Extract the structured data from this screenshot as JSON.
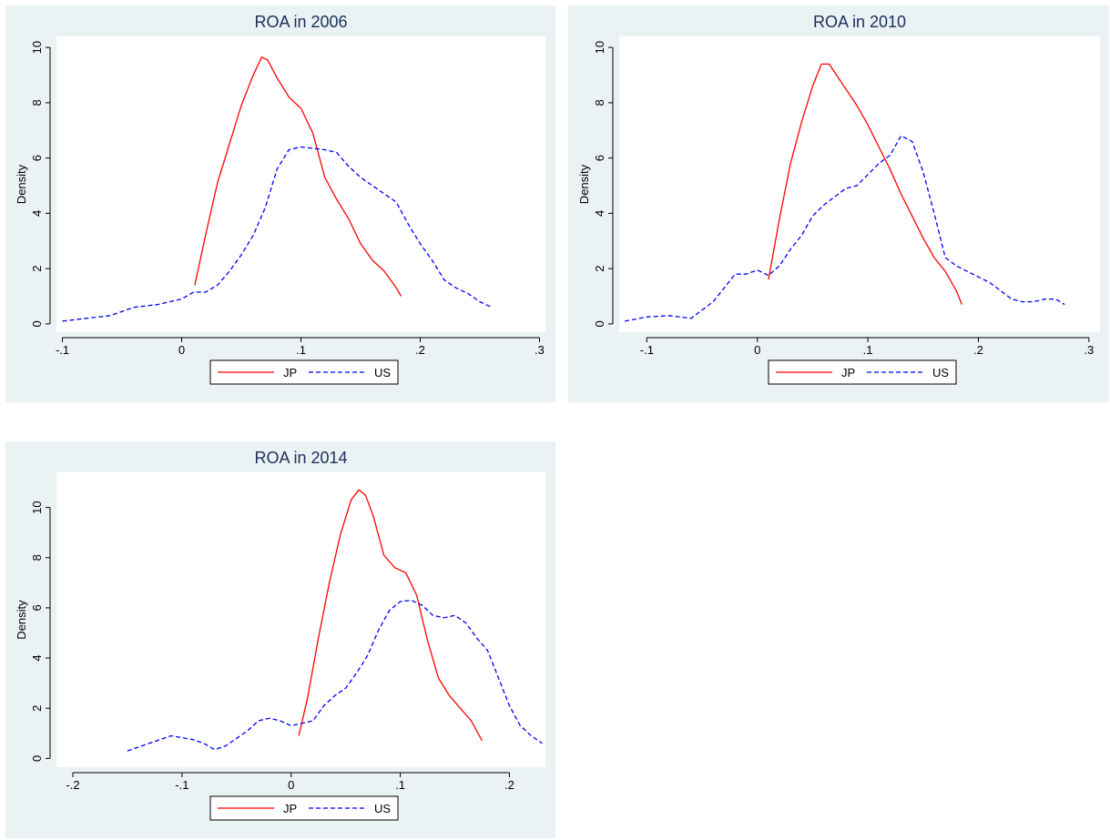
{
  "colors": {
    "panel_bg": "#eaf2f3",
    "plot_bg": "#ffffff",
    "title": "#1c2f5c",
    "jp": "#ff0000",
    "us": "#0000ff"
  },
  "chart_data": [
    {
      "type": "line",
      "title": "ROA in 2006",
      "ylabel": "Density",
      "xlim": [
        -0.105,
        0.305
      ],
      "ylim": [
        -0.3,
        10.4
      ],
      "xticks": [
        -0.1,
        0,
        0.1,
        0.2,
        0.3
      ],
      "xtick_labels": [
        "-.1",
        "0",
        ".1",
        ".2",
        ".3"
      ],
      "yticks": [
        0,
        2,
        4,
        6,
        8,
        10
      ],
      "ytick_labels": [
        "0",
        "2",
        "4",
        "6",
        "8",
        "10"
      ],
      "legend": "bottom",
      "series": [
        {
          "name": "JP",
          "style": "solid",
          "x": [
            0.011,
            0.02,
            0.03,
            0.04,
            0.05,
            0.06,
            0.067,
            0.072,
            0.08,
            0.09,
            0.1,
            0.11,
            0.12,
            0.13,
            0.14,
            0.15,
            0.16,
            0.17,
            0.18,
            0.184
          ],
          "y": [
            1.4,
            3.2,
            5.1,
            6.5,
            7.9,
            9.0,
            9.65,
            9.55,
            8.9,
            8.2,
            7.8,
            6.9,
            5.3,
            4.5,
            3.8,
            2.9,
            2.3,
            1.9,
            1.3,
            1.0
          ]
        },
        {
          "name": "US",
          "style": "dashed",
          "x": [
            -0.1,
            -0.08,
            -0.06,
            -0.04,
            -0.02,
            0,
            0.01,
            0.02,
            0.03,
            0.04,
            0.05,
            0.06,
            0.07,
            0.08,
            0.09,
            0.1,
            0.11,
            0.12,
            0.13,
            0.14,
            0.15,
            0.16,
            0.17,
            0.18,
            0.19,
            0.2,
            0.21,
            0.22,
            0.23,
            0.24,
            0.25,
            0.26
          ],
          "y": [
            0.1,
            0.2,
            0.3,
            0.6,
            0.7,
            0.9,
            1.15,
            1.15,
            1.4,
            1.9,
            2.5,
            3.2,
            4.2,
            5.6,
            6.3,
            6.4,
            6.35,
            6.3,
            6.2,
            5.7,
            5.3,
            5.0,
            4.7,
            4.4,
            3.6,
            2.9,
            2.3,
            1.6,
            1.3,
            1.1,
            0.8,
            0.6
          ]
        }
      ]
    },
    {
      "type": "line",
      "title": "ROA in 2010",
      "ylabel": "Density",
      "xlim": [
        -0.125,
        0.31
      ],
      "ylim": [
        -0.3,
        10.4
      ],
      "xticks": [
        -0.1,
        0,
        0.1,
        0.2,
        0.3
      ],
      "xtick_labels": [
        "-.1",
        "0",
        ".1",
        ".2",
        ".3"
      ],
      "yticks": [
        0,
        2,
        4,
        6,
        8,
        10
      ],
      "ytick_labels": [
        "0",
        "2",
        "4",
        "6",
        "8",
        "10"
      ],
      "legend": "bottom",
      "series": [
        {
          "name": "JP",
          "style": "solid",
          "x": [
            0.01,
            0.02,
            0.03,
            0.04,
            0.05,
            0.058,
            0.065,
            0.07,
            0.08,
            0.09,
            0.1,
            0.11,
            0.12,
            0.13,
            0.14,
            0.15,
            0.16,
            0.17,
            0.18,
            0.185
          ],
          "y": [
            1.6,
            3.8,
            5.8,
            7.3,
            8.6,
            9.4,
            9.4,
            9.1,
            8.5,
            7.9,
            7.2,
            6.4,
            5.6,
            4.7,
            3.9,
            3.1,
            2.4,
            1.9,
            1.2,
            0.7
          ]
        },
        {
          "name": "US",
          "style": "dashed",
          "x": [
            -0.12,
            -0.1,
            -0.08,
            -0.06,
            -0.05,
            -0.04,
            -0.03,
            -0.02,
            -0.01,
            0,
            0.01,
            0.02,
            0.03,
            0.04,
            0.05,
            0.06,
            0.07,
            0.08,
            0.09,
            0.1,
            0.11,
            0.12,
            0.13,
            0.14,
            0.15,
            0.16,
            0.17,
            0.18,
            0.19,
            0.2,
            0.21,
            0.22,
            0.23,
            0.24,
            0.25,
            0.26,
            0.27,
            0.278
          ],
          "y": [
            0.1,
            0.25,
            0.3,
            0.2,
            0.5,
            0.8,
            1.3,
            1.8,
            1.8,
            1.95,
            1.75,
            2.1,
            2.7,
            3.2,
            3.9,
            4.3,
            4.6,
            4.9,
            5.0,
            5.4,
            5.8,
            6.1,
            6.8,
            6.6,
            5.5,
            4.0,
            2.4,
            2.1,
            1.9,
            1.7,
            1.5,
            1.2,
            0.9,
            0.8,
            0.8,
            0.9,
            0.9,
            0.7
          ]
        }
      ]
    },
    {
      "type": "line",
      "title": "ROA in 2014",
      "ylabel": "Density",
      "xlim": [
        -0.215,
        0.233
      ],
      "ylim": [
        -0.35,
        11.4
      ],
      "xticks": [
        -0.2,
        -0.1,
        0,
        0.1,
        0.2
      ],
      "xtick_labels": [
        "-.2",
        "-.1",
        "0",
        ".1",
        ".2"
      ],
      "yticks": [
        0,
        2,
        4,
        6,
        8,
        10
      ],
      "ytick_labels": [
        "0",
        "2",
        "4",
        "6",
        "8",
        "10"
      ],
      "legend": "bottom",
      "series": [
        {
          "name": "JP",
          "style": "solid",
          "x": [
            0.007,
            0.015,
            0.025,
            0.035,
            0.045,
            0.055,
            0.062,
            0.068,
            0.075,
            0.085,
            0.095,
            0.105,
            0.115,
            0.125,
            0.135,
            0.145,
            0.155,
            0.165,
            0.175
          ],
          "y": [
            0.9,
            2.4,
            4.8,
            7.0,
            8.9,
            10.3,
            10.7,
            10.5,
            9.7,
            8.1,
            7.6,
            7.4,
            6.5,
            4.7,
            3.2,
            2.5,
            2.0,
            1.5,
            0.7
          ]
        },
        {
          "name": "US",
          "style": "dashed",
          "x": [
            -0.15,
            -0.13,
            -0.11,
            -0.09,
            -0.08,
            -0.07,
            -0.06,
            -0.05,
            -0.04,
            -0.03,
            -0.02,
            -0.01,
            0,
            0.01,
            0.02,
            0.03,
            0.04,
            0.05,
            0.06,
            0.07,
            0.08,
            0.09,
            0.1,
            0.11,
            0.12,
            0.13,
            0.14,
            0.15,
            0.16,
            0.17,
            0.18,
            0.19,
            0.2,
            0.21,
            0.22,
            0.23
          ],
          "y": [
            0.3,
            0.6,
            0.9,
            0.75,
            0.6,
            0.35,
            0.5,
            0.8,
            1.1,
            1.5,
            1.6,
            1.5,
            1.3,
            1.4,
            1.5,
            2.1,
            2.5,
            2.8,
            3.4,
            4.1,
            5.1,
            5.9,
            6.25,
            6.3,
            6.1,
            5.7,
            5.6,
            5.7,
            5.4,
            4.8,
            4.3,
            3.2,
            2.1,
            1.3,
            0.9,
            0.6
          ]
        }
      ]
    }
  ]
}
